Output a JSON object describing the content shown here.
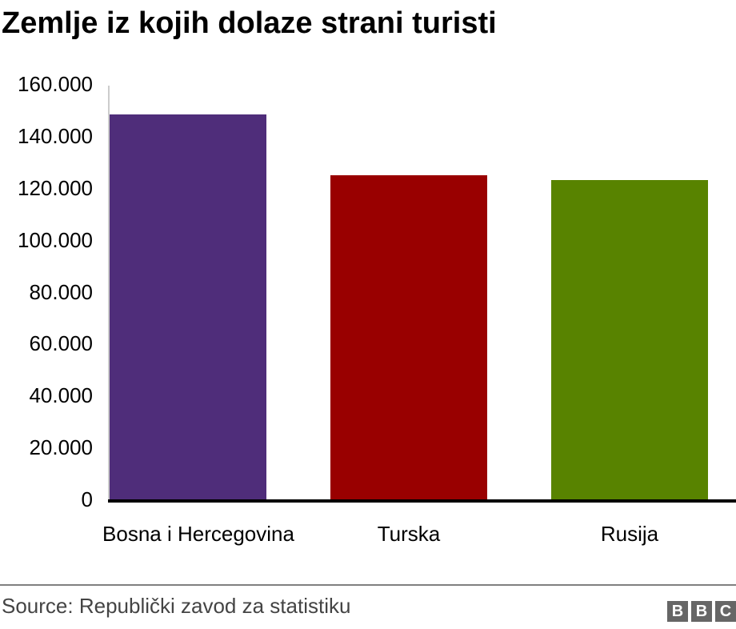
{
  "chart_data": {
    "type": "bar",
    "title": "Zemlje iz kojih dolaze strani turisti",
    "categories": [
      "Bosna i Hercegovina",
      "Turska",
      "Rusija"
    ],
    "values": [
      148900,
      125500,
      123600
    ],
    "colors": [
      "#4f2d7a",
      "#990000",
      "#588300"
    ],
    "xlabel": "",
    "ylabel": "",
    "ylim": [
      0,
      160000
    ],
    "yticks": [
      "0",
      "20.000",
      "40.000",
      "60.000",
      "80.000",
      "100.000",
      "120.000",
      "140.000",
      "160.000"
    ],
    "grid": false,
    "legend": null
  },
  "footer": {
    "source": "Source: Republički zavod za statistiku",
    "logo": [
      "B",
      "B",
      "C"
    ]
  }
}
